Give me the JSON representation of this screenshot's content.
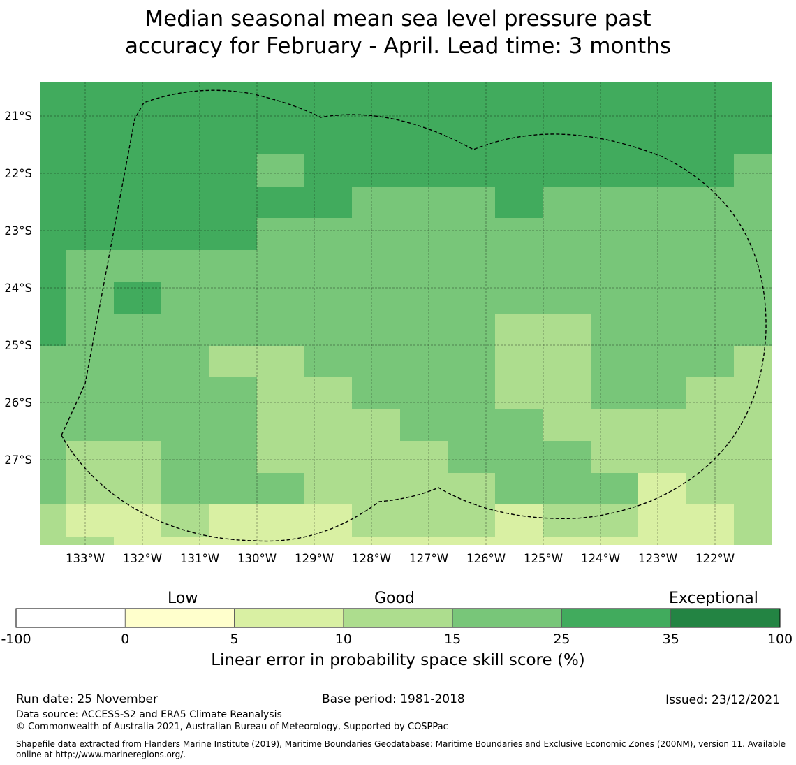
{
  "title_line1": "Median seasonal mean sea level pressure past",
  "title_line2": "accuracy for February - April. Lead time: 3 months",
  "map": {
    "lon_range": [
      -133.79,
      -121.0
    ],
    "lat_range_south": [
      20.4,
      28.49
    ],
    "lon_ticks": [
      {
        "value": -133,
        "label": "133°W"
      },
      {
        "value": -132,
        "label": "132°W"
      },
      {
        "value": -131,
        "label": "131°W"
      },
      {
        "value": -130,
        "label": "130°W"
      },
      {
        "value": -129,
        "label": "129°W"
      },
      {
        "value": -128,
        "label": "128°W"
      },
      {
        "value": -127,
        "label": "127°W"
      },
      {
        "value": -126,
        "label": "126°W"
      },
      {
        "value": -125,
        "label": "125°W"
      },
      {
        "value": -124,
        "label": "124°W"
      },
      {
        "value": -123,
        "label": "123°W"
      },
      {
        "value": -122,
        "label": "122°W"
      }
    ],
    "lat_ticks": [
      {
        "value": 21,
        "label": "21°S"
      },
      {
        "value": 22,
        "label": "22°S"
      },
      {
        "value": 23,
        "label": "23°S"
      },
      {
        "value": 24,
        "label": "24°S"
      },
      {
        "value": 25,
        "label": "25°S"
      },
      {
        "value": 26,
        "label": "26°S"
      },
      {
        "value": 27,
        "label": "27°S"
      }
    ],
    "grid_bins": [
      [
        5,
        5,
        5,
        5,
        5,
        5,
        5,
        5,
        5,
        5,
        5,
        5,
        5,
        5,
        5,
        5
      ],
      [
        5,
        5,
        5,
        5,
        5,
        5,
        5,
        5,
        5,
        5,
        5,
        5,
        5,
        5,
        5,
        5
      ],
      [
        5,
        5,
        5,
        5,
        5,
        5,
        5,
        5,
        5,
        5,
        5,
        5,
        5,
        5,
        5,
        5
      ],
      [
        5,
        5,
        5,
        5,
        5,
        4,
        5,
        5,
        5,
        5,
        5,
        5,
        5,
        5,
        5,
        4
      ],
      [
        5,
        5,
        5,
        5,
        5,
        5,
        5,
        4,
        4,
        4,
        5,
        4,
        4,
        4,
        4,
        4
      ],
      [
        5,
        5,
        5,
        5,
        5,
        4,
        4,
        4,
        4,
        4,
        4,
        4,
        4,
        4,
        4,
        4
      ],
      [
        5,
        4,
        4,
        4,
        4,
        4,
        4,
        4,
        4,
        4,
        4,
        4,
        4,
        4,
        4,
        4
      ],
      [
        5,
        4,
        5,
        4,
        4,
        4,
        4,
        4,
        4,
        4,
        4,
        4,
        4,
        4,
        4,
        4
      ],
      [
        5,
        4,
        4,
        4,
        4,
        4,
        4,
        4,
        4,
        4,
        3,
        3,
        4,
        4,
        4,
        4
      ],
      [
        4,
        4,
        4,
        4,
        3,
        3,
        4,
        4,
        4,
        4,
        3,
        3,
        4,
        4,
        4,
        3
      ],
      [
        4,
        4,
        4,
        4,
        4,
        3,
        3,
        4,
        4,
        4,
        3,
        3,
        4,
        4,
        3,
        3
      ],
      [
        4,
        4,
        4,
        4,
        4,
        3,
        3,
        3,
        4,
        4,
        4,
        3,
        3,
        3,
        3,
        3
      ],
      [
        4,
        3,
        3,
        4,
        4,
        3,
        3,
        3,
        3,
        4,
        4,
        4,
        3,
        3,
        3,
        3
      ],
      [
        4,
        3,
        3,
        4,
        4,
        4,
        3,
        3,
        3,
        3,
        4,
        4,
        4,
        2,
        3,
        3
      ],
      [
        3,
        2,
        2,
        3,
        2,
        2,
        2,
        3,
        3,
        3,
        2,
        3,
        3,
        2,
        2,
        3
      ],
      [
        3,
        3,
        2,
        2,
        2,
        2,
        2,
        2,
        2,
        2,
        2,
        2,
        2,
        2,
        2,
        3
      ]
    ]
  },
  "colorbar": {
    "bounds": [
      "-100",
      "0",
      "5",
      "10",
      "15",
      "25",
      "35",
      "100"
    ],
    "colors": [
      "#ffffff",
      "#ffffcc",
      "#d9f0a3",
      "#addd8e",
      "#78c679",
      "#41ab5d",
      "#238443"
    ],
    "category_low": "Low",
    "category_good": "Good",
    "category_exceptional": "Exceptional",
    "label": "Linear error in probability space skill score (%)"
  },
  "footer": {
    "run_date": "Run date: 25 November",
    "base_period": "Base period: 1981-2018",
    "issued": "Issued: 23/12/2021",
    "data_source": "Data source: ACCESS-S2 and ERA5 Climate Reanalysis",
    "copyright": "© Commonwealth of Australia 2021, Australian Bureau of Meteorology, Supported by COSPPac",
    "shapefile": "Shapefile data extracted from Flanders Marine Institute (2019), Maritime Boundaries Geodatabase: Maritime Boundaries and Exclusive Economic Zones (200NM), version 11. Available online at http://www.marineregions.org/."
  }
}
